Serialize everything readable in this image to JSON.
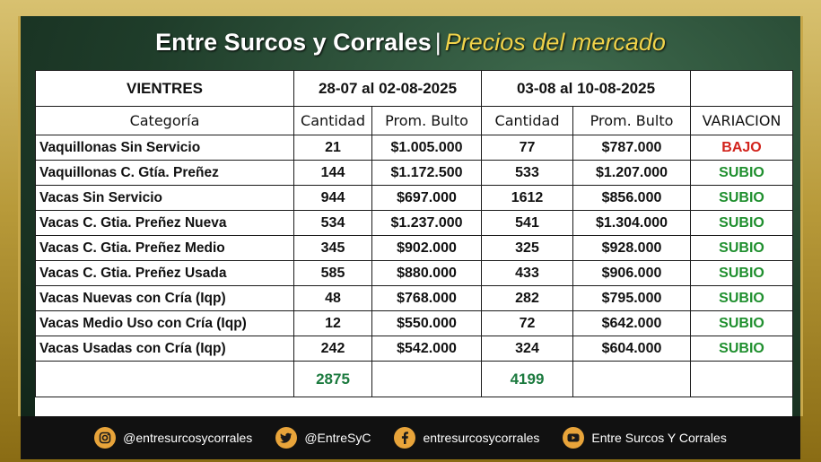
{
  "title": {
    "main": "Entre Surcos y Corrales",
    "separator": "|",
    "sub": "Precios del mercado"
  },
  "table": {
    "section_label": "VIENTRES",
    "period1": "28-07 al 02-08-2025",
    "period2": "03-08 al 10-08-2025",
    "headers": {
      "categoria": "Categoría",
      "cantidad1": "Cantidad",
      "prom1": "Prom. Bulto",
      "cantidad2": "Cantidad",
      "prom2": "Prom. Bulto",
      "variacion": "VARIACION"
    },
    "rows": [
      {
        "cat": "Vaquillonas Sin Servicio",
        "q1": "21",
        "p1": "$1.005.000",
        "q2": "77",
        "p2": "$787.000",
        "var": "BAJO"
      },
      {
        "cat": "Vaquillonas C. Gtía. Preñez",
        "q1": "144",
        "p1": "$1.172.500",
        "q2": "533",
        "p2": "$1.207.000",
        "var": "SUBIO"
      },
      {
        "cat": "Vacas Sin Servicio",
        "q1": "944",
        "p1": "$697.000",
        "q2": "1612",
        "p2": "$856.000",
        "var": "SUBIO"
      },
      {
        "cat": "Vacas C. Gtia. Preñez Nueva",
        "q1": "534",
        "p1": "$1.237.000",
        "q2": "541",
        "p2": "$1.304.000",
        "var": "SUBIO"
      },
      {
        "cat": "Vacas C. Gtia. Preñez Medio",
        "q1": "345",
        "p1": "$902.000",
        "q2": "325",
        "p2": "$928.000",
        "var": "SUBIO"
      },
      {
        "cat": "Vacas C. Gtia. Preñez Usada",
        "q1": "585",
        "p1": "$880.000",
        "q2": "433",
        "p2": "$906.000",
        "var": "SUBIO"
      },
      {
        "cat": "Vacas Nuevas con Cría (Iqp)",
        "q1": "48",
        "p1": "$768.000",
        "q2": "282",
        "p2": "$795.000",
        "var": "SUBIO"
      },
      {
        "cat": "Vacas Medio Uso con Cría (Iqp)",
        "q1": "12",
        "p1": "$550.000",
        "q2": "72",
        "p2": "$642.000",
        "var": "SUBIO"
      },
      {
        "cat": "Vacas Usadas con Cría (Iqp)",
        "q1": "242",
        "p1": "$542.000",
        "q2": "324",
        "p2": "$604.000",
        "var": "SUBIO"
      }
    ],
    "totals": {
      "q1": "2875",
      "q2": "4199"
    }
  },
  "footer": {
    "instagram": "@entresurcosycorrales",
    "twitter": "@EntreSyC",
    "facebook": "entresurcosycorrales",
    "youtube": "Entre Surcos Y Corrales"
  },
  "colors": {
    "bajo": "#d2231c",
    "subio": "#1f8f2e",
    "total": "#1b7a3e",
    "title_sub": "#f0d34a"
  },
  "icons": [
    "instagram-icon",
    "twitter-icon",
    "facebook-icon",
    "youtube-icon"
  ]
}
